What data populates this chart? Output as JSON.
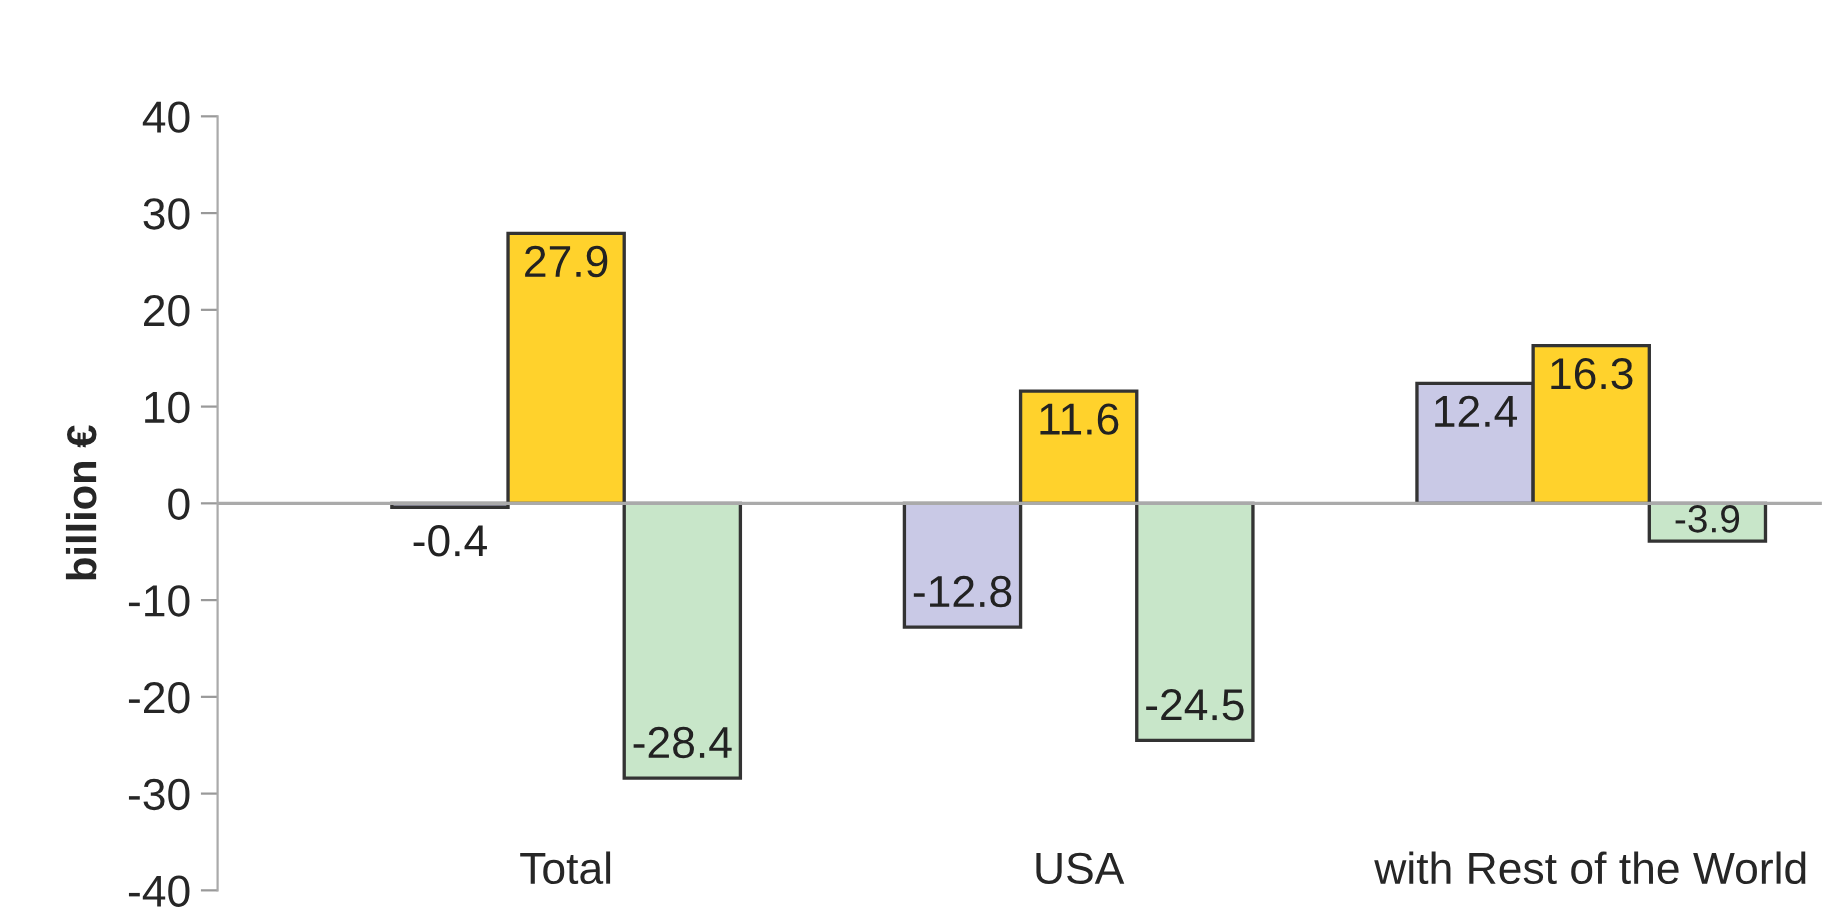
{
  "chart_data": {
    "type": "bar",
    "ylabel": "billion €",
    "categories": [
      "Total",
      "USA",
      "with Rest of the World"
    ],
    "series": [
      {
        "color": "#c9c9e6",
        "values": [
          -0.4,
          -12.8,
          12.4
        ]
      },
      {
        "color": "#ffd22c",
        "values": [
          27.9,
          11.6,
          16.3
        ]
      },
      {
        "color": "#c8e6c9",
        "values": [
          -28.4,
          -24.5,
          -3.9
        ]
      }
    ],
    "ylim": [
      -40,
      40
    ],
    "yticks": [
      -40,
      -30,
      -20,
      -10,
      0,
      10,
      20,
      30,
      40
    ],
    "ref_lines": [
      {
        "axis": "y",
        "value": 0,
        "color": "#aaaaaa"
      }
    ],
    "data_labels": true,
    "grid": false,
    "legend": false
  }
}
